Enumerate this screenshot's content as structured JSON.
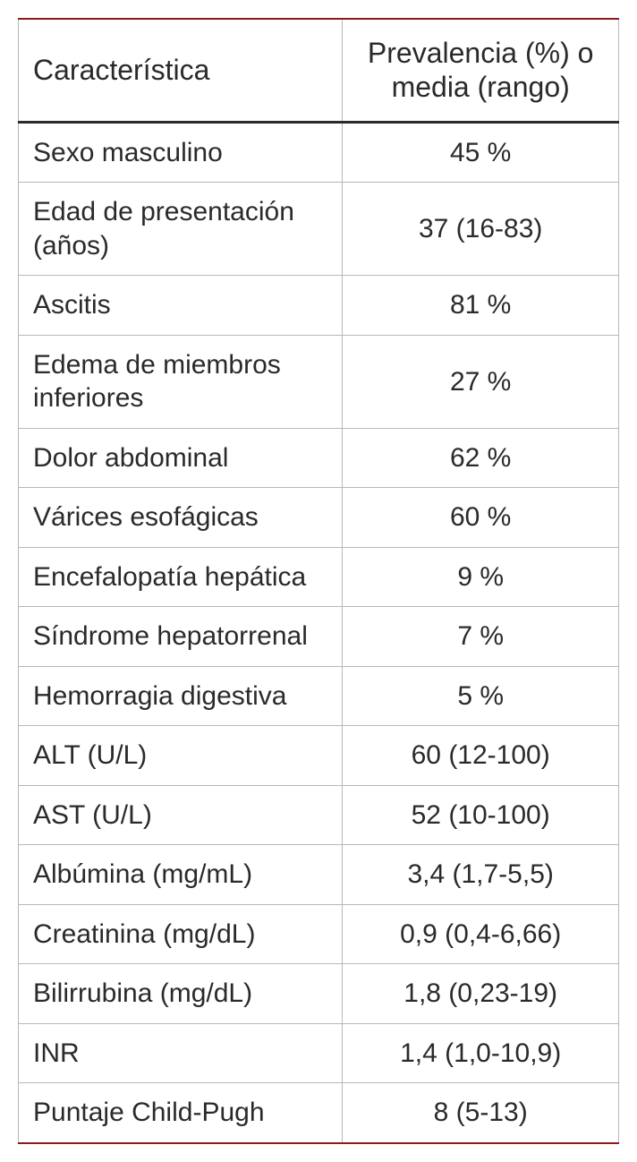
{
  "table": {
    "columns": [
      "Característica",
      "Prevalencia (%) o media (rango)"
    ],
    "rows": [
      [
        "Sexo masculino",
        "45 %"
      ],
      [
        "Edad de presentación (años)",
        "37 (16-83)"
      ],
      [
        "Ascitis",
        "81 %"
      ],
      [
        "Edema de miembros inferiores",
        "27 %"
      ],
      [
        "Dolor abdominal",
        "62 %"
      ],
      [
        "Várices esofágicas",
        "60 %"
      ],
      [
        "Encefalopatía hepática",
        "9 %"
      ],
      [
        "Síndrome hepatorrenal",
        "7 %"
      ],
      [
        "Hemorragia digestiva",
        "5 %"
      ],
      [
        "ALT (U/L)",
        "60 (12-100)"
      ],
      [
        "AST (U/L)",
        "52 (10-100)"
      ],
      [
        "Albúmina (mg/mL)",
        "3,4 (1,7-5,5)"
      ],
      [
        "Creatinina (mg/dL)",
        "0,9 (0,4-6,66)"
      ],
      [
        "Bilirrubina (mg/dL)",
        "1,8 (0,23-19)"
      ],
      [
        "INR",
        "1,4 (1,0-10,9)"
      ],
      [
        "Puntaje Child-Pugh",
        "8 (5-13)"
      ]
    ],
    "header_fontsize": 32,
    "cell_fontsize": 30,
    "text_color": "#2a2a2a",
    "border_color": "#b8b8b8",
    "accent_border_color": "#8b1a1a",
    "header_bottom_border_color": "#2a2a2a",
    "background_color": "#ffffff",
    "col_widths": [
      "54%",
      "46%"
    ]
  }
}
